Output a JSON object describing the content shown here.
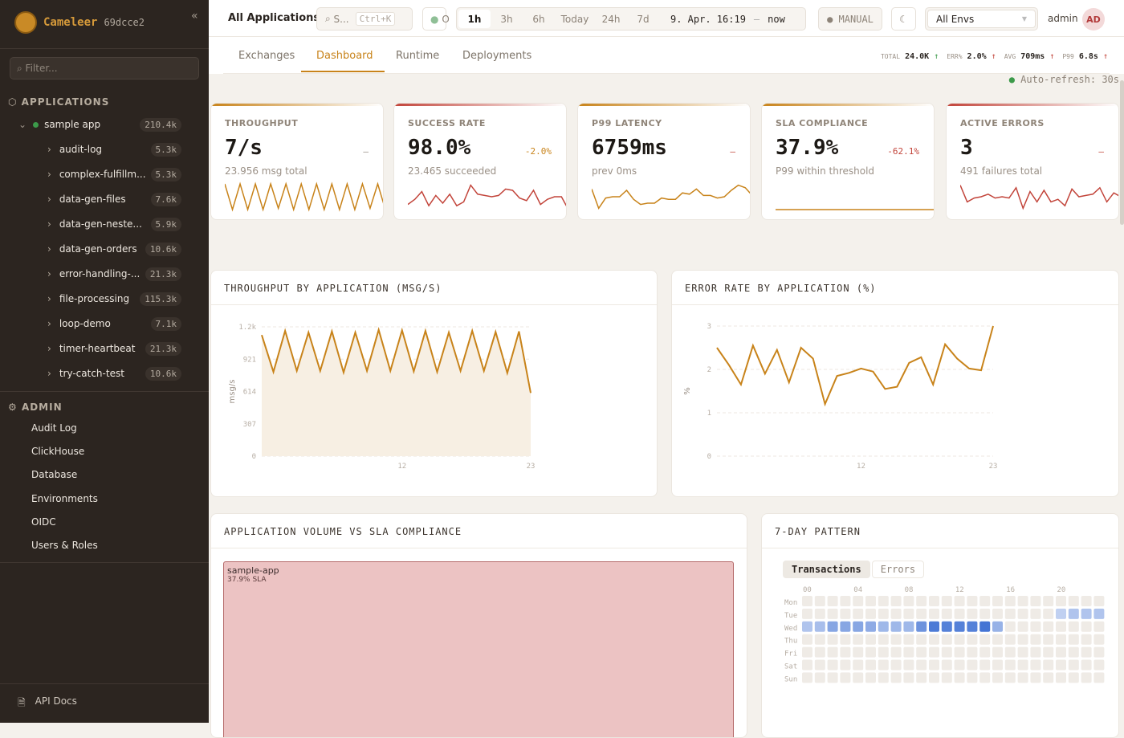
{
  "sidebar": {
    "brand": "Cameleer",
    "version": "69dcce2",
    "collapse_icon": "«",
    "filter_placeholder": "Filter...",
    "applications_label": "APPLICATIONS",
    "root": {
      "name": "sample app",
      "count": "210.4k",
      "status_color": "#3c9a4a"
    },
    "apps": [
      {
        "name": "audit-log",
        "count": "5.3k"
      },
      {
        "name": "complex-fulfillm...",
        "count": "5.3k"
      },
      {
        "name": "data-gen-files",
        "count": "7.6k"
      },
      {
        "name": "data-gen-neste...",
        "count": "5.9k"
      },
      {
        "name": "data-gen-orders",
        "count": "10.6k"
      },
      {
        "name": "error-handling-...",
        "count": "21.3k"
      },
      {
        "name": "file-processing",
        "count": "115.3k"
      },
      {
        "name": "loop-demo",
        "count": "7.1k"
      },
      {
        "name": "timer-heartbeat",
        "count": "21.3k"
      },
      {
        "name": "try-catch-test",
        "count": "10.6k"
      }
    ],
    "admin_label": "ADMIN",
    "admin_items": [
      "Audit Log",
      "ClickHouse",
      "Database",
      "Environments",
      "OIDC",
      "Users & Roles"
    ],
    "api_docs": "API Docs"
  },
  "header": {
    "scope": "All Applications",
    "search_placeholder": "S...",
    "search_shortcut": "Ctrl+K",
    "status_short": "O",
    "ranges": [
      "1h",
      "3h",
      "6h",
      "Today",
      "24h",
      "7d"
    ],
    "active_range": "1h",
    "range_from": "9. Apr. 16:19",
    "range_sep": "–",
    "range_to": "now",
    "refresh_mode": "MANUAL",
    "env": "All Envs",
    "user": "admin",
    "avatar": "AD"
  },
  "tabs": {
    "items": [
      "Exchanges",
      "Dashboard",
      "Runtime",
      "Deployments"
    ],
    "active": "Dashboard"
  },
  "stats": {
    "total_label": "TOTAL",
    "total": "24.0K",
    "err_label": "ERR%",
    "err": "2.0%",
    "avg_label": "AVG",
    "avg": "709ms",
    "p99_label": "P99",
    "p99": "6.8s"
  },
  "auto_refresh": "Auto-refresh: 30s",
  "kpis": [
    {
      "label": "THROUGHPUT",
      "value": "7/s",
      "delta": "–",
      "sub": "23.956 msg total",
      "color": "#c8831a",
      "delta_color": "#9a9086",
      "spark": [
        1,
        0,
        1,
        0,
        1,
        0,
        1,
        0.05,
        1,
        0,
        1,
        0,
        1,
        0,
        1,
        0,
        1,
        0,
        1,
        0.05,
        1,
        0
      ]
    },
    {
      "label": "SUCCESS RATE",
      "value": "98.0%",
      "delta": "-2.0%",
      "sub": "23.465 succeeded",
      "color": "#c2443a",
      "delta_color": "#c8831a",
      "spark": [
        0.2,
        0.4,
        0.7,
        0.15,
        0.55,
        0.25,
        0.6,
        0.15,
        0.3,
        0.95,
        0.6,
        0.55,
        0.5,
        0.55,
        0.8,
        0.75,
        0.45,
        0.35,
        0.75,
        0.2,
        0.4,
        0.5,
        0.5,
        0
      ]
    },
    {
      "label": "P99 LATENCY",
      "value": "6759ms",
      "delta": "–",
      "sub": "prev 0ms",
      "color": "#c8831a",
      "delta_color": "#c2443a",
      "spark": [
        0.8,
        0.05,
        0.45,
        0.5,
        0.5,
        0.75,
        0.4,
        0.2,
        0.25,
        0.25,
        0.45,
        0.4,
        0.4,
        0.65,
        0.6,
        0.8,
        0.55,
        0.55,
        0.45,
        0.5,
        0.75,
        0.95,
        0.85,
        0.55
      ]
    },
    {
      "label": "SLA COMPLIANCE",
      "value": "37.9%",
      "delta": "-62.1%",
      "sub": "P99 within threshold",
      "color": "#c8831a",
      "delta_color": "#c2443a",
      "spark": [
        0,
        0
      ]
    },
    {
      "label": "ACTIVE ERRORS",
      "value": "3",
      "delta": "–",
      "sub": "491 failures total",
      "color": "#c2443a",
      "delta_color": "#c2443a",
      "spark": [
        0.95,
        0.3,
        0.45,
        0.5,
        0.6,
        0.45,
        0.5,
        0.45,
        0.85,
        0.05,
        0.7,
        0.3,
        0.75,
        0.3,
        0.4,
        0.15,
        0.8,
        0.5,
        0.55,
        0.6,
        0.85,
        0.3,
        0.65,
        0.5
      ]
    }
  ],
  "chart_data": [
    {
      "type": "area",
      "title": "THROUGHPUT BY APPLICATION (MSG/S)",
      "ylabel": "msg/s",
      "xlabel": "",
      "color": "#c8831a",
      "x": [
        0,
        1,
        2,
        3,
        4,
        5,
        6,
        7,
        8,
        9,
        10,
        11,
        12,
        13,
        14,
        15,
        16,
        17,
        18,
        19,
        20,
        21,
        22,
        23
      ],
      "values": [
        1150,
        800,
        1190,
        810,
        1175,
        810,
        1185,
        795,
        1175,
        810,
        1200,
        810,
        1195,
        805,
        1190,
        800,
        1175,
        810,
        1190,
        810,
        1180,
        790,
        1185,
        600
      ],
      "ylim": [
        0,
        1228
      ],
      "yticks": [
        "0",
        "307",
        "614",
        "921",
        "1.2k"
      ],
      "xticks": [
        "12",
        "23"
      ],
      "grid": true
    },
    {
      "type": "line",
      "title": "ERROR RATE BY APPLICATION (%)",
      "ylabel": "%",
      "xlabel": "",
      "color": "#c8831a",
      "x": [
        0,
        1,
        2,
        3,
        4,
        5,
        6,
        7,
        8,
        9,
        10,
        11,
        12,
        13,
        14,
        15,
        16,
        17,
        18,
        19,
        20,
        21,
        22,
        23
      ],
      "values": [
        2.5,
        2.1,
        1.65,
        2.55,
        1.9,
        2.45,
        1.7,
        2.5,
        2.25,
        1.2,
        1.85,
        1.92,
        2.02,
        1.95,
        1.55,
        1.6,
        2.15,
        2.28,
        1.65,
        2.58,
        2.25,
        2.02,
        1.98,
        3.0
      ],
      "ylim": [
        0,
        3
      ],
      "yticks": [
        "0",
        "1",
        "2",
        "3"
      ],
      "xticks": [
        "12",
        "23"
      ],
      "grid": true
    },
    {
      "type": "treemap",
      "title": "APPLICATION VOLUME VS SLA COMPLIANCE",
      "items": [
        {
          "name": "sample-app",
          "sla": "37.9% SLA"
        }
      ]
    },
    {
      "type": "heatmap",
      "title": "7-DAY PATTERN",
      "toggle": [
        "Transactions",
        "Errors"
      ],
      "active_toggle": "Transactions",
      "days": [
        "Mon",
        "Tue",
        "Wed",
        "Thu",
        "Fri",
        "Sat",
        "Sun"
      ],
      "hour_labels": [
        "00",
        "04",
        "08",
        "12",
        "16",
        "20"
      ],
      "intensity": {
        "Tue": {
          "20": 0.2,
          "21": 0.3,
          "22": 0.3,
          "23": 0.3
        },
        "Wed": {
          "0": 0.3,
          "1": 0.35,
          "2": 0.55,
          "3": 0.55,
          "4": 0.55,
          "5": 0.5,
          "6": 0.4,
          "7": 0.4,
          "8": 0.4,
          "9": 0.7,
          "10": 0.9,
          "11": 0.85,
          "12": 0.85,
          "13": 0.85,
          "14": 0.95,
          "15": 0.45
        }
      }
    }
  ]
}
